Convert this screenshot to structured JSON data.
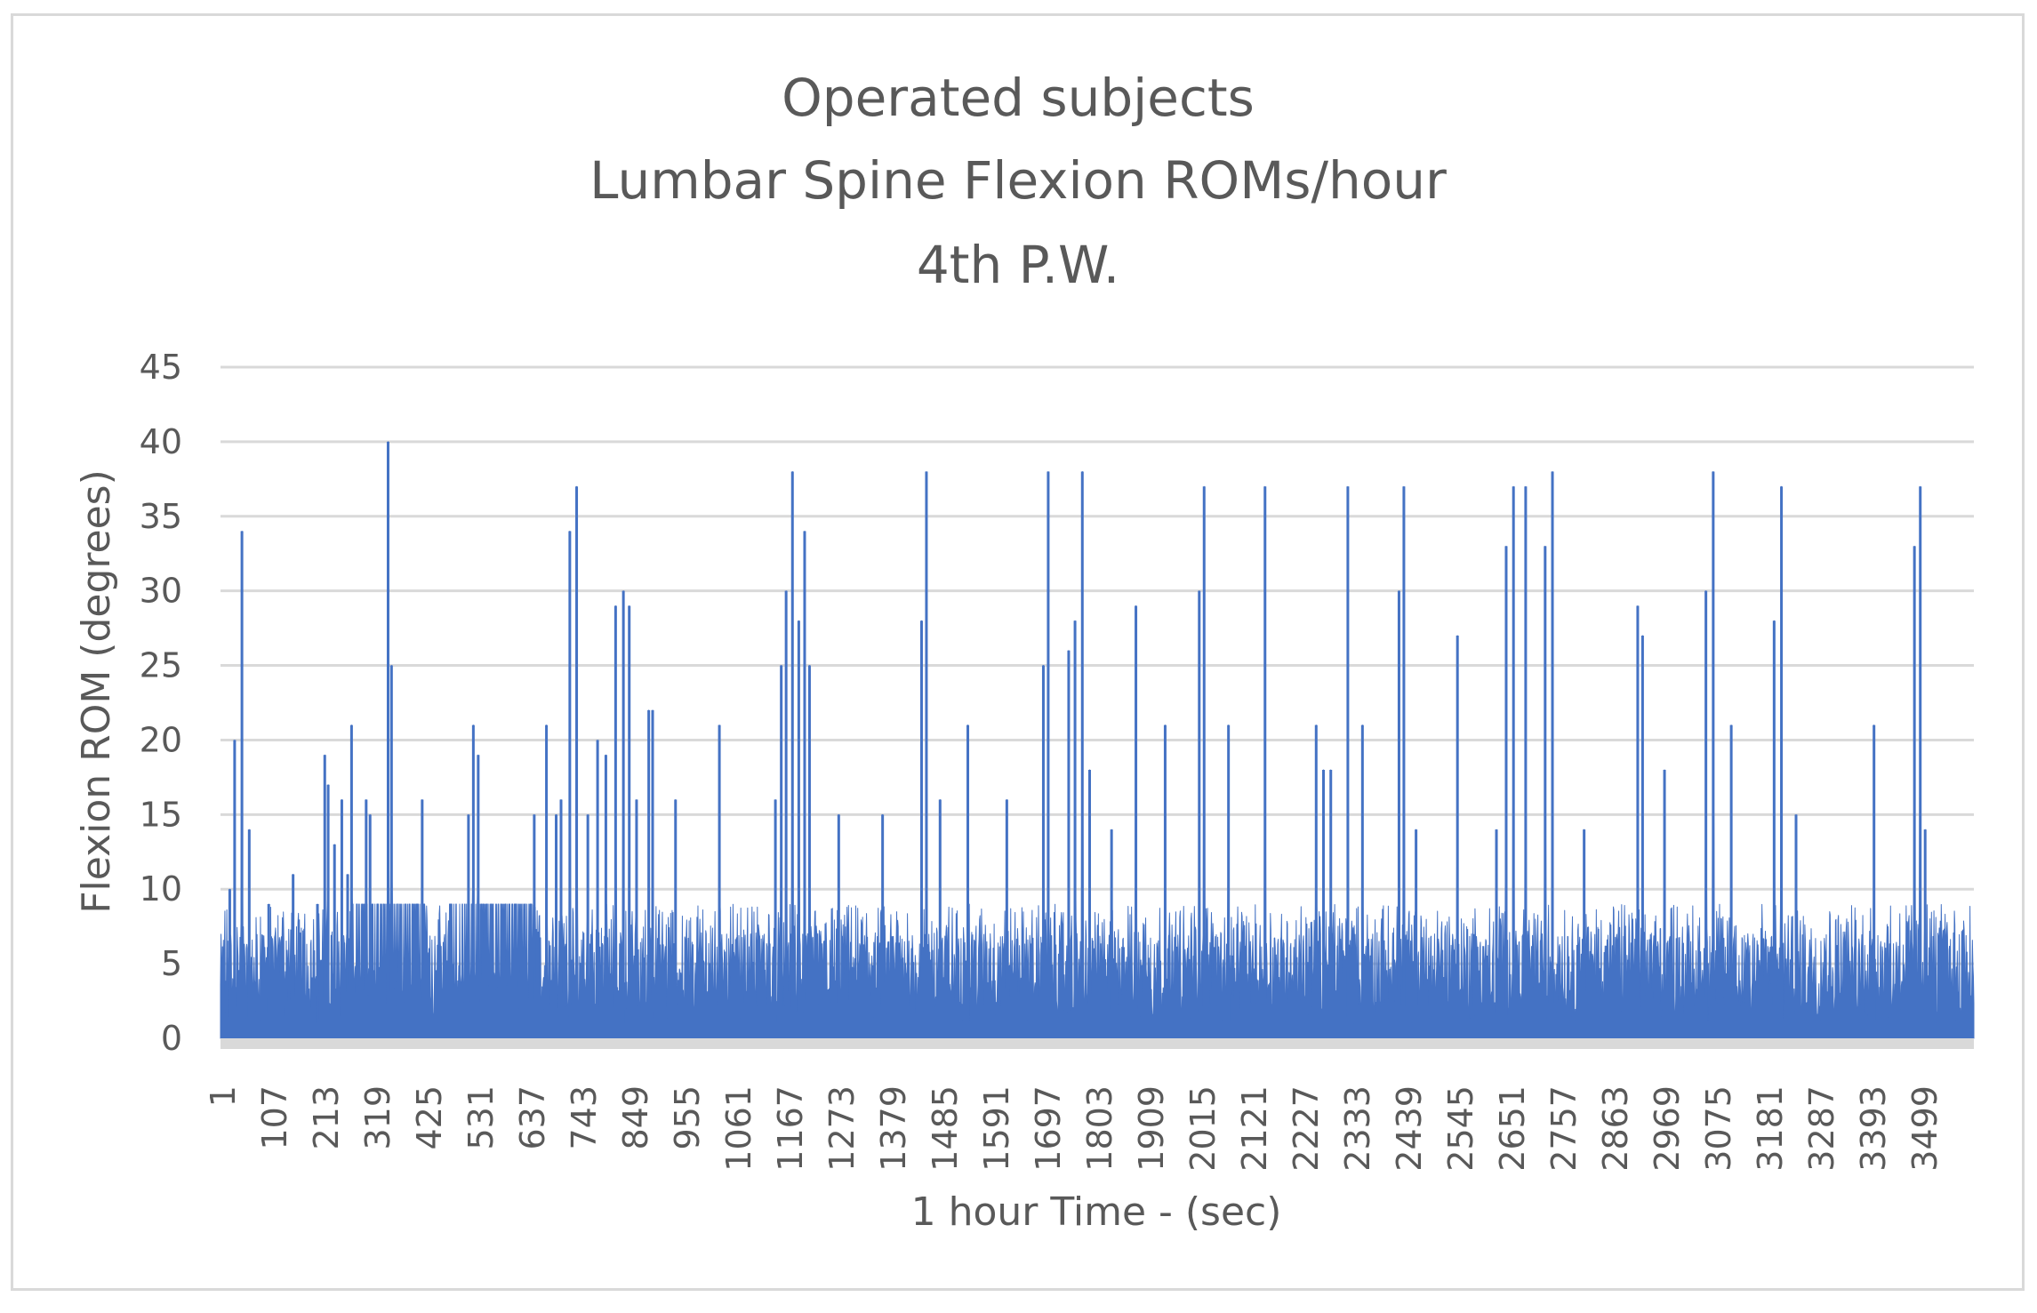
{
  "chart_data": {
    "type": "area",
    "title_lines": [
      "Operated subjects",
      "Lumbar Spine Flexion ROMs/hour",
      "4th P.W."
    ],
    "xlabel": "1 hour Time - (sec)",
    "ylabel": "Flexion ROM (degrees)",
    "ylim": [
      0,
      45
    ],
    "yticks": [
      0,
      5,
      10,
      15,
      20,
      25,
      30,
      35,
      40,
      45
    ],
    "x_range": [
      1,
      3600
    ],
    "xtick_labels": [
      "1",
      "107",
      "213",
      "319",
      "425",
      "531",
      "637",
      "743",
      "849",
      "955",
      "1061",
      "1167",
      "1273",
      "1379",
      "1485",
      "1591",
      "1697",
      "1803",
      "1909",
      "2015",
      "2121",
      "2227",
      "2333",
      "2439",
      "2545",
      "2651",
      "2757",
      "2863",
      "2969",
      "3075",
      "3181",
      "3287",
      "3393",
      "3499"
    ],
    "grid": true,
    "legend": "none",
    "series_color": "#4472c4",
    "baseline": 1,
    "peaks": [
      {
        "x": 20,
        "y": 10
      },
      {
        "x": 30,
        "y": 20
      },
      {
        "x": 45,
        "y": 34
      },
      {
        "x": 60,
        "y": 14
      },
      {
        "x": 100,
        "y": 9
      },
      {
        "x": 150,
        "y": 11
      },
      {
        "x": 200,
        "y": 9
      },
      {
        "x": 215,
        "y": 19
      },
      {
        "x": 222,
        "y": 17
      },
      {
        "x": 235,
        "y": 13
      },
      {
        "x": 250,
        "y": 16
      },
      {
        "x": 262,
        "y": 11
      },
      {
        "x": 270,
        "y": 21
      },
      {
        "x": 300,
        "y": 16
      },
      {
        "x": 308,
        "y": 15
      },
      {
        "x": 345,
        "y": 40
      },
      {
        "x": 352,
        "y": 25
      },
      {
        "x": 415,
        "y": 16
      },
      {
        "x": 510,
        "y": 15
      },
      {
        "x": 520,
        "y": 21
      },
      {
        "x": 530,
        "y": 19
      },
      {
        "x": 645,
        "y": 15
      },
      {
        "x": 670,
        "y": 21
      },
      {
        "x": 690,
        "y": 15
      },
      {
        "x": 700,
        "y": 16
      },
      {
        "x": 718,
        "y": 34
      },
      {
        "x": 732,
        "y": 37
      },
      {
        "x": 755,
        "y": 15
      },
      {
        "x": 775,
        "y": 20
      },
      {
        "x": 792,
        "y": 19
      },
      {
        "x": 812,
        "y": 29
      },
      {
        "x": 828,
        "y": 30
      },
      {
        "x": 840,
        "y": 29
      },
      {
        "x": 855,
        "y": 16
      },
      {
        "x": 880,
        "y": 22
      },
      {
        "x": 888,
        "y": 22
      },
      {
        "x": 935,
        "y": 16
      },
      {
        "x": 1025,
        "y": 21
      },
      {
        "x": 1140,
        "y": 16
      },
      {
        "x": 1152,
        "y": 25
      },
      {
        "x": 1162,
        "y": 30
      },
      {
        "x": 1175,
        "y": 38
      },
      {
        "x": 1188,
        "y": 28
      },
      {
        "x": 1200,
        "y": 34
      },
      {
        "x": 1210,
        "y": 25
      },
      {
        "x": 1270,
        "y": 15
      },
      {
        "x": 1360,
        "y": 15
      },
      {
        "x": 1440,
        "y": 28
      },
      {
        "x": 1450,
        "y": 38
      },
      {
        "x": 1478,
        "y": 16
      },
      {
        "x": 1535,
        "y": 21
      },
      {
        "x": 1615,
        "y": 16
      },
      {
        "x": 1690,
        "y": 25
      },
      {
        "x": 1700,
        "y": 38
      },
      {
        "x": 1742,
        "y": 26
      },
      {
        "x": 1755,
        "y": 28
      },
      {
        "x": 1770,
        "y": 38
      },
      {
        "x": 1785,
        "y": 18
      },
      {
        "x": 1830,
        "y": 14
      },
      {
        "x": 1880,
        "y": 29
      },
      {
        "x": 1940,
        "y": 21
      },
      {
        "x": 2010,
        "y": 30
      },
      {
        "x": 2020,
        "y": 37
      },
      {
        "x": 2070,
        "y": 21
      },
      {
        "x": 2145,
        "y": 37
      },
      {
        "x": 2250,
        "y": 21
      },
      {
        "x": 2265,
        "y": 18
      },
      {
        "x": 2280,
        "y": 18
      },
      {
        "x": 2315,
        "y": 37
      },
      {
        "x": 2345,
        "y": 21
      },
      {
        "x": 2420,
        "y": 30
      },
      {
        "x": 2430,
        "y": 37
      },
      {
        "x": 2455,
        "y": 14
      },
      {
        "x": 2540,
        "y": 27
      },
      {
        "x": 2620,
        "y": 14
      },
      {
        "x": 2640,
        "y": 33
      },
      {
        "x": 2655,
        "y": 37
      },
      {
        "x": 2680,
        "y": 37
      },
      {
        "x": 2720,
        "y": 33
      },
      {
        "x": 2735,
        "y": 38
      },
      {
        "x": 2800,
        "y": 14
      },
      {
        "x": 2910,
        "y": 29
      },
      {
        "x": 2920,
        "y": 27
      },
      {
        "x": 2965,
        "y": 18
      },
      {
        "x": 3050,
        "y": 30
      },
      {
        "x": 3065,
        "y": 38
      },
      {
        "x": 3102,
        "y": 21
      },
      {
        "x": 3190,
        "y": 28
      },
      {
        "x": 3205,
        "y": 37
      },
      {
        "x": 3235,
        "y": 15
      },
      {
        "x": 3395,
        "y": 21
      },
      {
        "x": 3478,
        "y": 33
      },
      {
        "x": 3490,
        "y": 37
      },
      {
        "x": 3500,
        "y": 14
      }
    ],
    "plateaus": [
      {
        "x0": 270,
        "x1": 420,
        "y": 9
      },
      {
        "x0": 470,
        "x1": 640,
        "y": 9
      }
    ],
    "noise_level": {
      "min": 2,
      "max": 9
    }
  }
}
